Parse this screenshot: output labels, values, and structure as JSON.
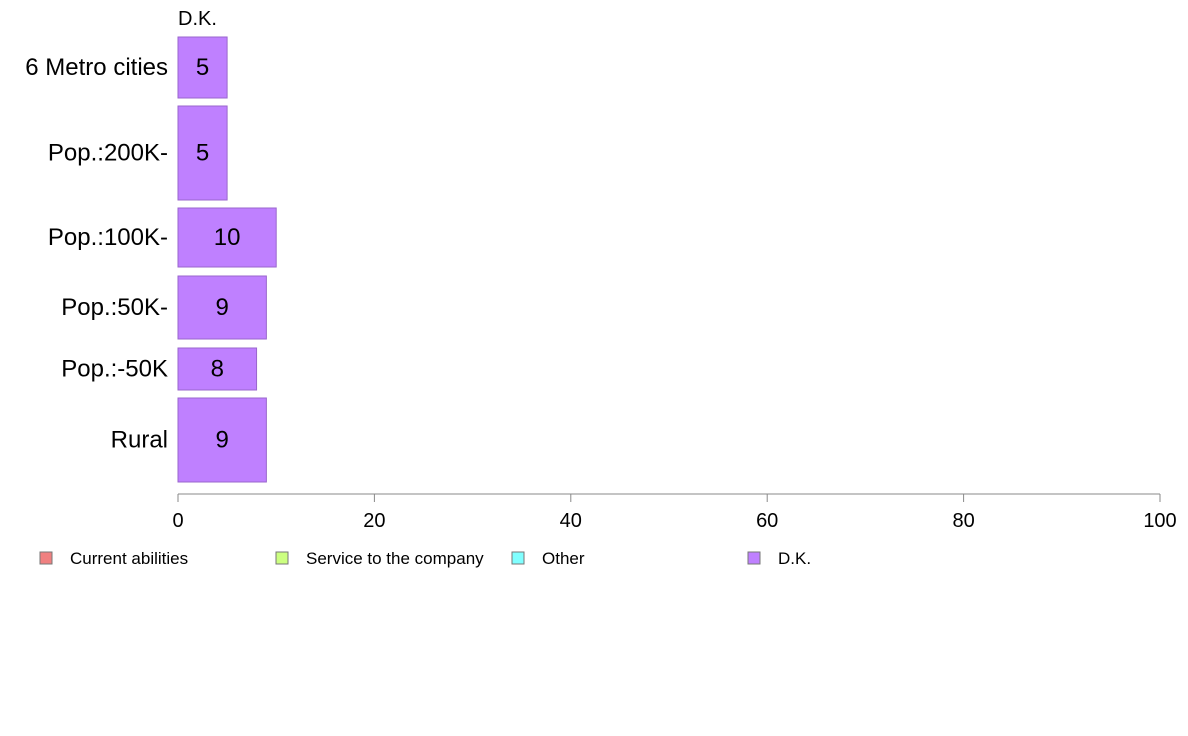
{
  "chart_data": {
    "type": "bar",
    "orientation": "horizontal",
    "stacked": true,
    "categories": [
      "6 Metro cities",
      "Pop.:200K-",
      "Pop.:100K-",
      "Pop.:50K-",
      "Pop.:-50K",
      "Rural"
    ],
    "series": [
      {
        "name": "Current abilities",
        "color": "#f08080",
        "values": [
          null,
          null,
          null,
          null,
          null,
          null
        ]
      },
      {
        "name": "Service to the company",
        "color": "#ccff80",
        "values": [
          null,
          null,
          null,
          null,
          null,
          null
        ]
      },
      {
        "name": "Other",
        "color": "#80ffff",
        "values": [
          null,
          null,
          null,
          null,
          null,
          null
        ]
      },
      {
        "name": "D.K.",
        "color": "#bf80ff",
        "values": [
          5,
          5,
          10,
          9,
          8,
          9
        ]
      }
    ],
    "visible_series_title": "D.K.",
    "value_labels": [
      "5",
      "5",
      "10",
      "9",
      "8",
      "9"
    ],
    "xlim": [
      0,
      100
    ],
    "xticks": [
      0,
      20,
      40,
      60,
      80,
      100
    ],
    "grid": false,
    "legend_position": "bottom",
    "bar_edge_color": "#9966cc"
  }
}
